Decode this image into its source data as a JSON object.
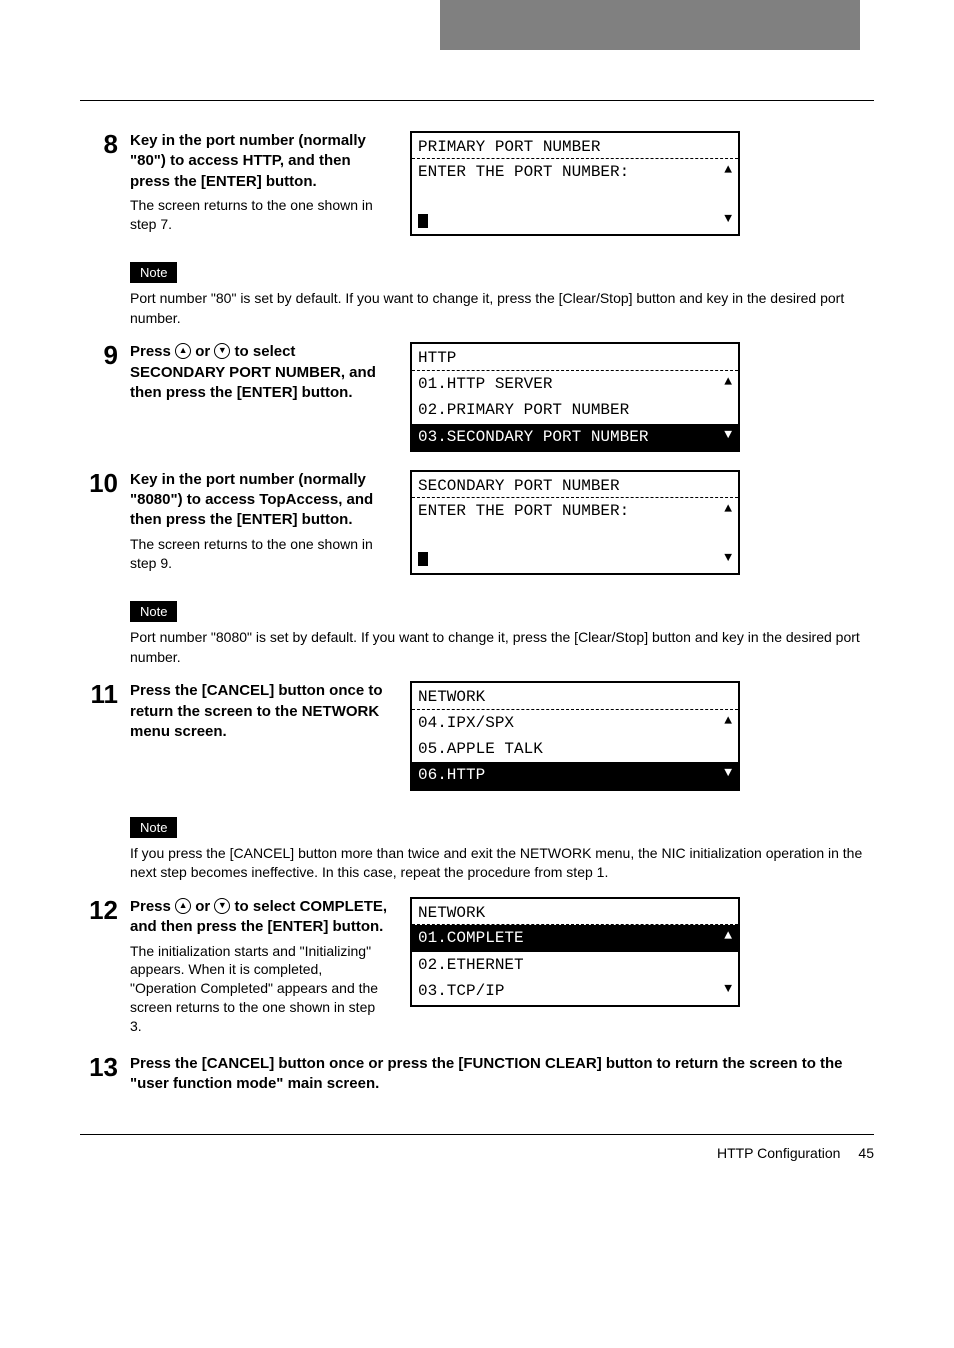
{
  "steps": {
    "s8": {
      "num": "8",
      "title": "Key in the port number (normally \"80\") to access HTTP, and then press the [ENTER] button.",
      "sub": "The screen returns to the one shown in step 7.",
      "noteLabel": "Note",
      "noteText": "Port number \"80\" is set by default. If you want to change it, press the [Clear/Stop] button and key in the desired port number."
    },
    "s9": {
      "num": "9",
      "titlePre": "Press ",
      "titleMid": " or ",
      "titlePost": " to select SECONDARY PORT NUMBER, and then press the [ENTER] button."
    },
    "s10": {
      "num": "10",
      "title": "Key in the port number (normally \"8080\") to access TopAccess, and then press the [ENTER] button.",
      "sub": "The screen returns to the one shown in step 9.",
      "noteLabel": "Note",
      "noteText": "Port number \"8080\" is set by default. If you want to change it, press the [Clear/Stop] button and key in the desired port number."
    },
    "s11": {
      "num": "11",
      "title": "Press the [CANCEL] button once to return the screen to the NETWORK menu screen.",
      "noteLabel": "Note",
      "noteText": "If you press the [CANCEL] button more than twice and exit the NETWORK menu, the NIC initialization operation in the next step becomes ineffective. In this case, repeat the procedure from step 1."
    },
    "s12": {
      "num": "12",
      "titlePre": "Press ",
      "titleMid": " or ",
      "titlePost": " to select COMPLETE, and then press the [ENTER] button.",
      "sub": "The initialization starts and \"Initializing\" appears. When it is completed, \"Operation Completed\" appears and the screen returns to the one shown in step 3."
    },
    "s13": {
      "num": "13",
      "title": "Press the [CANCEL] button once or press the [FUNCTION CLEAR] button to return the screen to the \"user function mode\" main screen."
    }
  },
  "lcd": {
    "l8": {
      "title": "PRIMARY PORT NUMBER",
      "r1": "ENTER THE PORT NUMBER:"
    },
    "l9": {
      "title": "HTTP",
      "r1": "01.HTTP SERVER",
      "r2": "02.PRIMARY PORT NUMBER",
      "r3": "03.SECONDARY PORT NUMBER"
    },
    "l10": {
      "title": "SECONDARY PORT NUMBER",
      "r1": "ENTER THE PORT NUMBER:"
    },
    "l11": {
      "title": "NETWORK",
      "r1": "04.IPX/SPX",
      "r2": "05.APPLE TALK",
      "r3": "06.HTTP"
    },
    "l12": {
      "title": "NETWORK",
      "r1": "01.COMPLETE",
      "r2": "02.ETHERNET",
      "r3": "03.TCP/IP"
    }
  },
  "glyphs": {
    "up": "▲",
    "down": "▼"
  },
  "footer": {
    "section": "HTTP Configuration",
    "page": "45"
  }
}
